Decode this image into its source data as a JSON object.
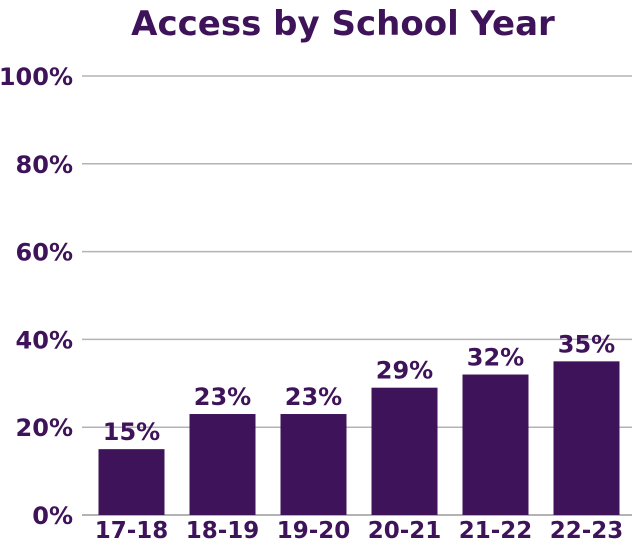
{
  "colors": {
    "bar": "#3e1359",
    "text": "#3e1359",
    "grid": "#b3b3b3",
    "background": "#ffffff"
  },
  "chart_data": {
    "type": "bar",
    "title": "Access by School Year",
    "xlabel": "",
    "ylabel": "",
    "categories": [
      "17-18",
      "18-19",
      "19-20",
      "20-21",
      "21-22",
      "22-23"
    ],
    "values": [
      15,
      23,
      23,
      29,
      32,
      35
    ],
    "data_labels": [
      "15%",
      "23%",
      "23%",
      "29%",
      "32%",
      "35%"
    ],
    "ylim": [
      0,
      100
    ],
    "yticks": [
      0,
      20,
      40,
      60,
      80,
      100
    ],
    "ytick_labels": [
      "0%",
      "20%",
      "40%",
      "60%",
      "80%",
      "100%"
    ],
    "grid": true,
    "legend": "none"
  }
}
